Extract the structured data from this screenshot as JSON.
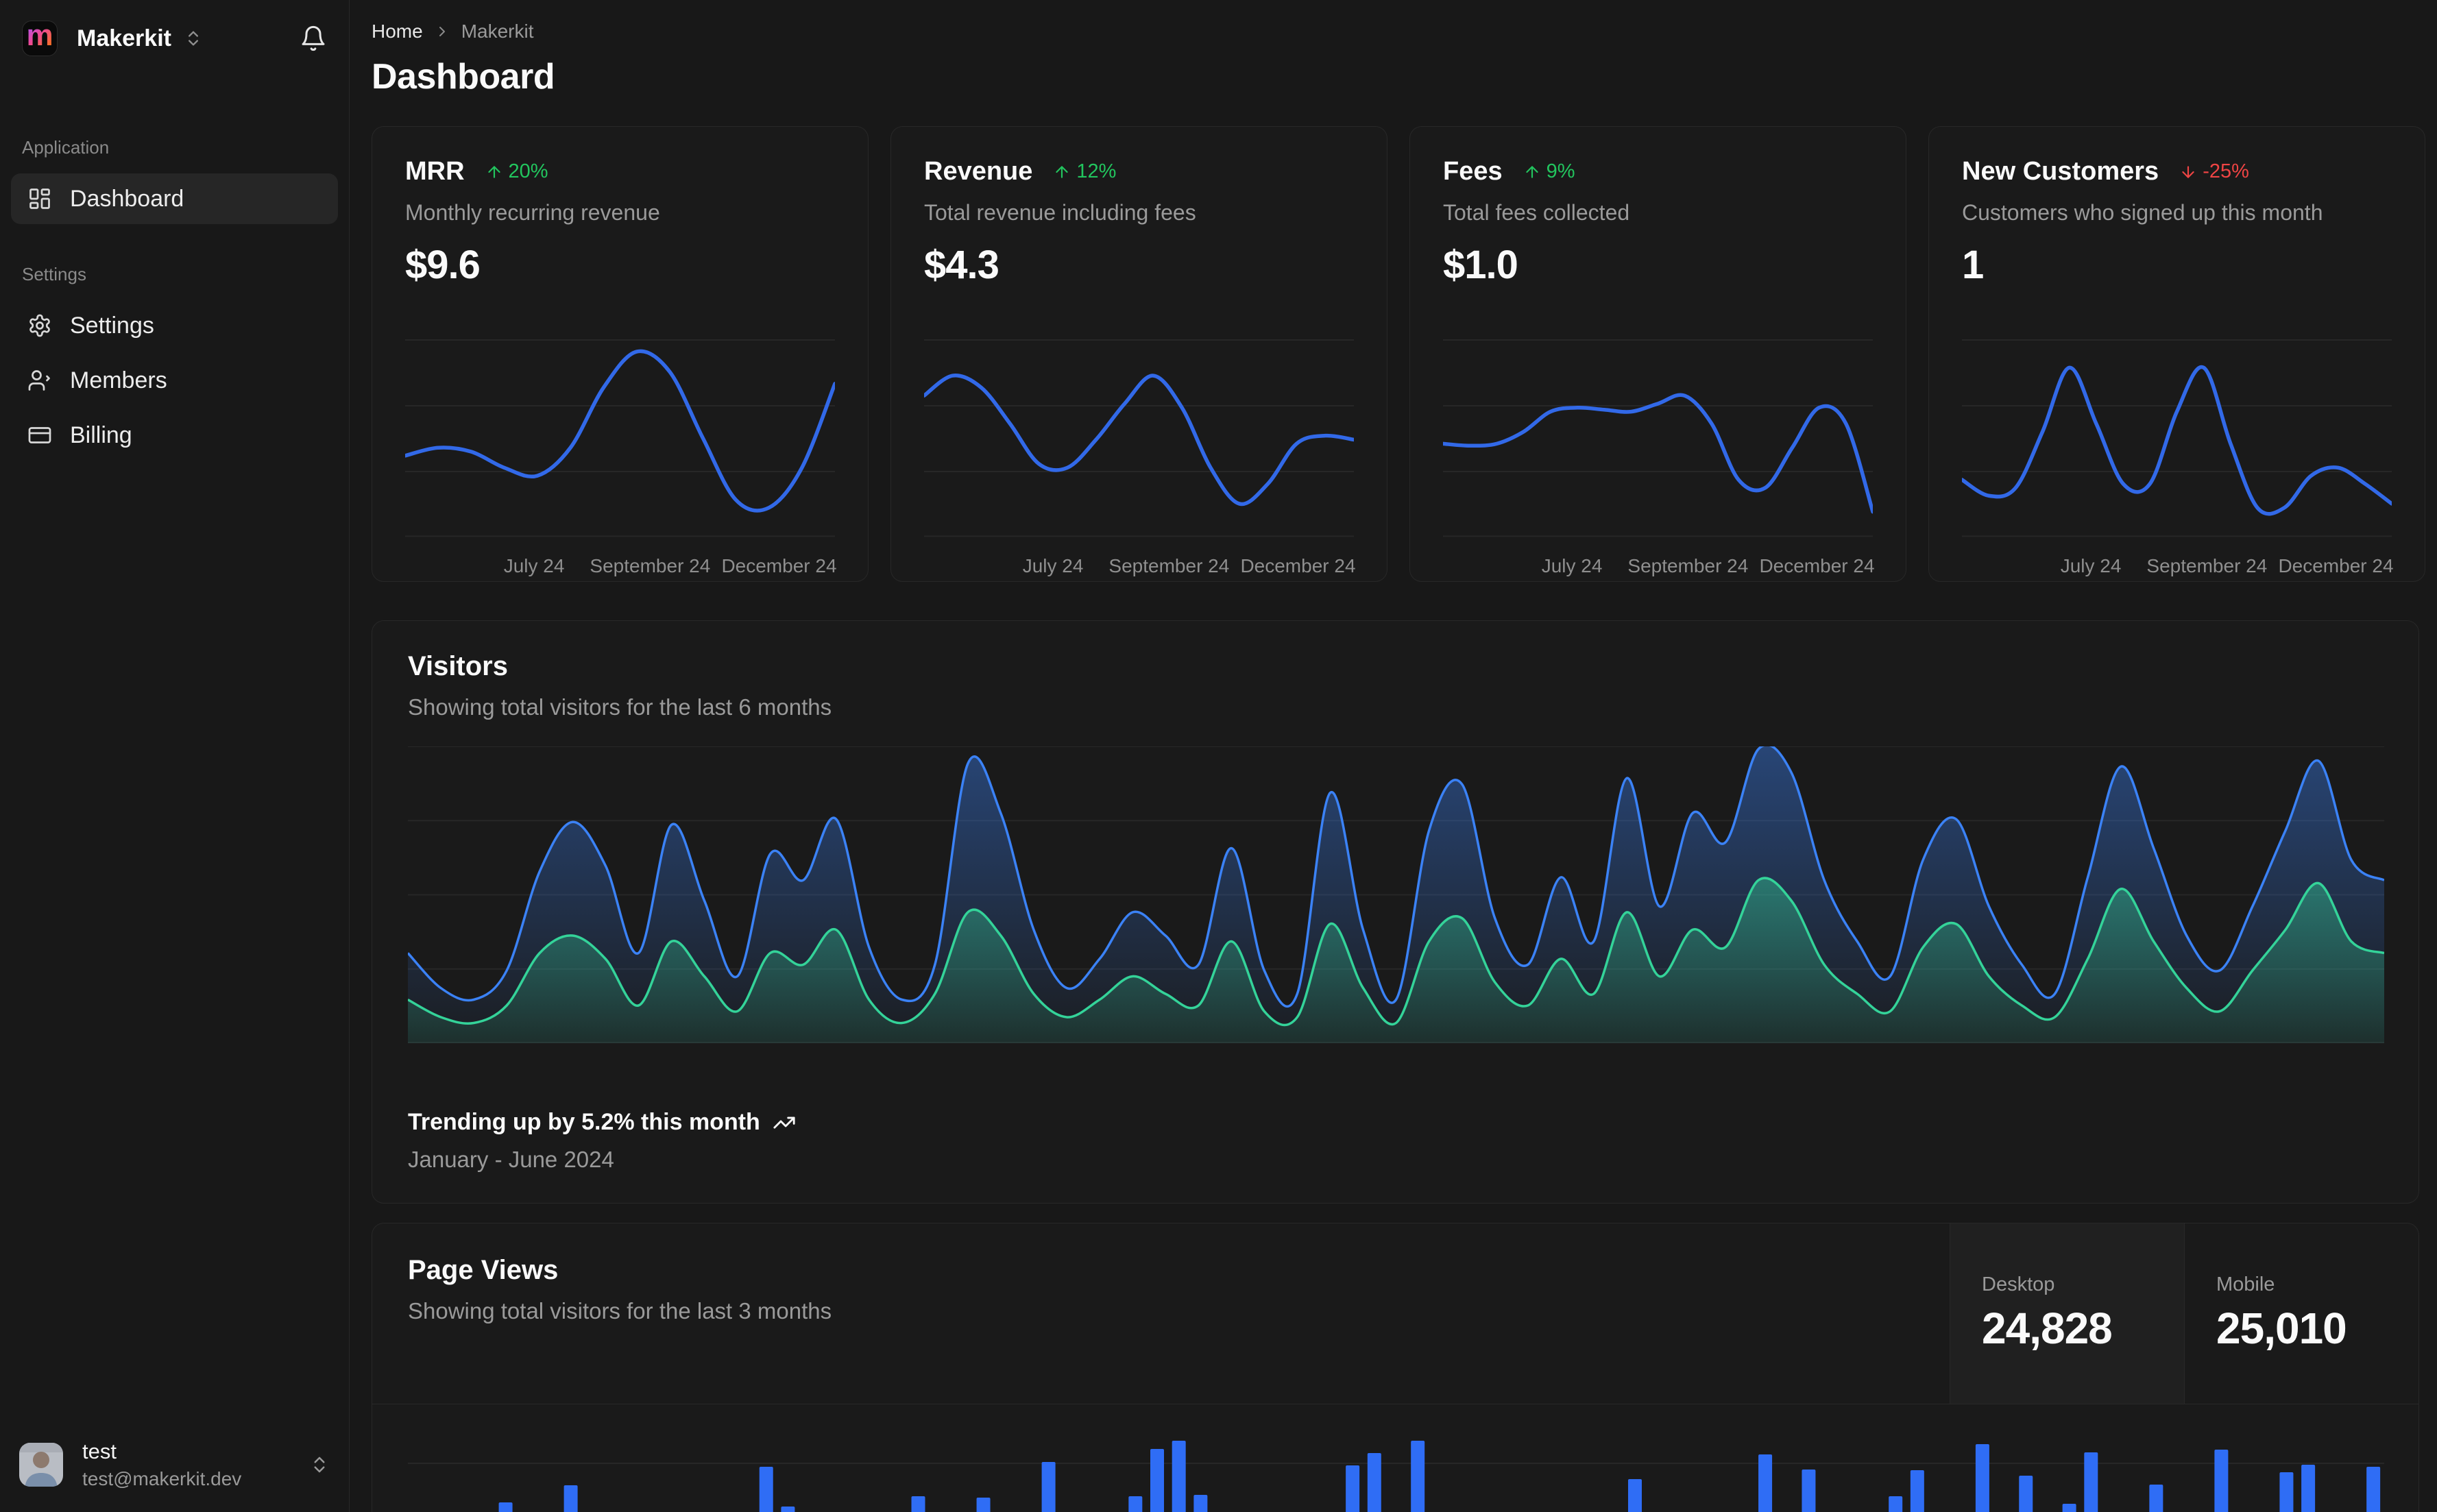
{
  "colors": {
    "spark_blue": "#3269e8",
    "area_blue": "#3b82f6",
    "area_green": "#34d399",
    "bar_blue": "#2f6df5",
    "up_green": "#22c55e",
    "down_red": "#ef4444",
    "grid": "rgba(255,255,255,0.06)"
  },
  "sidebar": {
    "workspace": {
      "name": "Makerkit",
      "logo_letter": "m"
    },
    "sections": [
      {
        "label": "Application",
        "items": [
          {
            "label": "Dashboard",
            "active": true
          }
        ]
      },
      {
        "label": "Settings",
        "items": [
          {
            "label": "Settings"
          },
          {
            "label": "Members"
          },
          {
            "label": "Billing"
          }
        ]
      }
    ],
    "user": {
      "name": "test",
      "email": "test@makerkit.dev"
    }
  },
  "header": {
    "breadcrumb": [
      "Home",
      "Makerkit"
    ],
    "title": "Dashboard"
  },
  "stat_cards": [
    {
      "title": "MRR",
      "change": "20%",
      "direction": "up",
      "subtitle": "Monthly recurring revenue",
      "value": "$9.6",
      "ticks": [
        "July 24",
        "September 24",
        "December 24"
      ]
    },
    {
      "title": "Revenue",
      "change": "12%",
      "direction": "up",
      "subtitle": "Total revenue including fees",
      "value": "$4.3",
      "ticks": [
        "July 24",
        "September 24",
        "December 24"
      ]
    },
    {
      "title": "Fees",
      "change": "9%",
      "direction": "up",
      "subtitle": "Total fees collected",
      "value": "$1.0",
      "ticks": [
        "July 24",
        "September 24",
        "December 24"
      ]
    },
    {
      "title": "New Customers",
      "change": "-25%",
      "direction": "down",
      "subtitle": "Customers who signed up this month",
      "value": "1",
      "ticks": [
        "July 24",
        "September 24",
        "December 24"
      ]
    }
  ],
  "visitors": {
    "title": "Visitors",
    "subtitle": "Showing total visitors for the last 6 months",
    "trend_text": "Trending up by 5.2% this month",
    "range_text": "January - June 2024"
  },
  "page_views": {
    "title": "Page Views",
    "subtitle": "Showing total visitors for the last 3 months",
    "toggles": [
      {
        "label": "Desktop",
        "value": "24,828",
        "selected": true
      },
      {
        "label": "Mobile",
        "value": "25,010",
        "selected": false
      }
    ]
  },
  "chart_data": [
    {
      "id": "mrr",
      "type": "line",
      "x_ticks": [
        "July 24",
        "September 24",
        "December 24"
      ],
      "values": [
        36,
        40,
        38,
        30,
        26,
        40,
        70,
        88,
        78,
        45,
        14,
        10,
        30,
        72
      ]
    },
    {
      "id": "revenue",
      "type": "line",
      "x_ticks": [
        "July 24",
        "September 24",
        "December 24"
      ],
      "values": [
        66,
        76,
        70,
        52,
        32,
        30,
        44,
        62,
        76,
        60,
        30,
        12,
        22,
        42,
        46,
        44
      ]
    },
    {
      "id": "fees",
      "type": "line",
      "x_ticks": [
        "July 24",
        "September 24",
        "December 24"
      ],
      "values": [
        42,
        41,
        42,
        48,
        58,
        60,
        59,
        58,
        62,
        66,
        52,
        24,
        20,
        40,
        60,
        52,
        8
      ]
    },
    {
      "id": "customers",
      "type": "line",
      "x_ticks": [
        "July 24",
        "September 24",
        "December 24"
      ],
      "values": [
        24,
        16,
        20,
        48,
        80,
        52,
        22,
        22,
        58,
        80,
        42,
        10,
        10,
        26,
        30,
        22,
        12
      ]
    },
    {
      "id": "visitors",
      "type": "area",
      "title": "Visitors",
      "x_range": "January - June 2024",
      "grid": true,
      "series": [
        {
          "color": "#3b82f6",
          "values": [
            30,
            18,
            14,
            24,
            58,
            75,
            60,
            30,
            74,
            48,
            22,
            64,
            55,
            76,
            32,
            14,
            26,
            95,
            78,
            38,
            18,
            28,
            44,
            36,
            26,
            66,
            24,
            16,
            85,
            38,
            14,
            72,
            88,
            42,
            26,
            56,
            34,
            90,
            46,
            78,
            68,
            100,
            92,
            55,
            34,
            22,
            62,
            76,
            46,
            26,
            16,
            56,
            94,
            66,
            36,
            24,
            46,
            72,
            96,
            62,
            55
          ]
        },
        {
          "color": "#34d399",
          "values": [
            14,
            8,
            6,
            12,
            30,
            36,
            28,
            12,
            34,
            22,
            10,
            30,
            26,
            38,
            14,
            6,
            16,
            44,
            36,
            16,
            8,
            14,
            22,
            16,
            12,
            34,
            10,
            8,
            40,
            18,
            6,
            34,
            42,
            20,
            12,
            28,
            16,
            44,
            22,
            38,
            32,
            55,
            48,
            26,
            16,
            10,
            32,
            40,
            22,
            12,
            8,
            28,
            52,
            34,
            18,
            10,
            24,
            38,
            54,
            34,
            30
          ]
        }
      ]
    },
    {
      "id": "pageviews",
      "type": "bar",
      "title": "Page Views",
      "values": [
        0,
        0,
        0,
        0,
        19,
        0,
        0,
        44,
        0,
        0,
        0,
        0,
        0,
        0,
        0,
        0,
        71,
        13,
        0,
        0,
        0,
        0,
        0,
        28,
        0,
        0,
        26,
        0,
        0,
        78,
        0,
        0,
        0,
        28,
        97,
        109,
        30,
        0,
        0,
        0,
        0,
        0,
        0,
        73,
        91,
        0,
        109,
        0,
        0,
        0,
        0,
        0,
        0,
        0,
        0,
        0,
        53,
        0,
        0,
        0,
        0,
        0,
        89,
        0,
        67,
        0,
        0,
        0,
        28,
        66,
        0,
        0,
        104,
        0,
        58,
        0,
        17,
        92,
        0,
        0,
        45,
        0,
        0,
        96,
        0,
        0,
        63,
        74,
        0,
        0,
        71
      ]
    }
  ]
}
